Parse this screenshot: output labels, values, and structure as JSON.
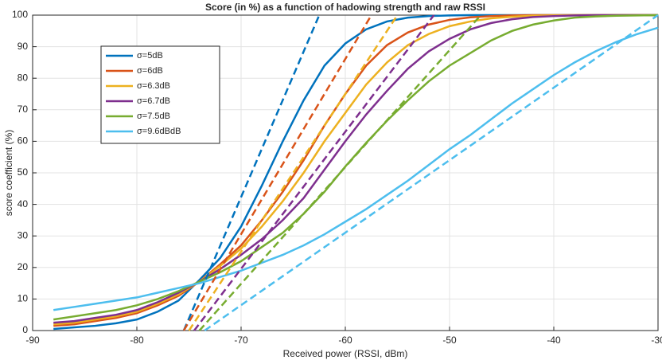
{
  "chart_data": {
    "type": "line",
    "title": "Score (in %) as a function of hadowing strength and raw RSSI",
    "x_label": "Received power (RSSI, dBm)",
    "y_label": "score coefficient (%)",
    "x": [
      -88,
      -86,
      -84,
      -82,
      -80,
      -78,
      -76,
      -74,
      -72,
      -70,
      -68,
      -66,
      -64,
      -62,
      -60,
      -58,
      -56,
      -54,
      -52,
      -50,
      -48,
      -46,
      -44,
      -42,
      -40,
      -38,
      -36,
      -34,
      -32,
      -30
    ],
    "series": [
      {
        "name": "σ=5dB",
        "color": "#0072bd",
        "values": [
          0.5,
          1,
          1.5,
          2.3,
          3.5,
          6,
          9.5,
          16,
          23,
          33,
          46,
          60,
          73,
          84,
          91,
          95.5,
          98,
          99.2,
          99.7,
          99.9,
          100,
          100,
          100,
          100,
          100,
          100,
          100,
          100,
          100,
          100
        ]
      },
      {
        "name": "σ=6dB",
        "color": "#d95319",
        "values": [
          1.5,
          2,
          3,
          4,
          5.5,
          8,
          11,
          15.5,
          21,
          27,
          35,
          44,
          54,
          65,
          75,
          84,
          90.5,
          94.5,
          97,
          98.5,
          99.3,
          99.7,
          99.9,
          100,
          100,
          100,
          100,
          100,
          100,
          100
        ]
      },
      {
        "name": "σ=6.3dB",
        "color": "#edb120",
        "values": [
          2,
          2.5,
          3.5,
          4.5,
          6,
          8.5,
          11.5,
          15.5,
          20.5,
          26,
          33,
          41,
          50,
          60,
          69,
          78,
          85,
          90.5,
          94,
          96.5,
          98,
          99,
          99.5,
          99.8,
          99.9,
          100,
          100,
          100,
          100,
          100
        ]
      },
      {
        "name": "σ=6.7dB",
        "color": "#7e2f8e",
        "values": [
          2.5,
          3,
          4,
          5,
          6.5,
          9,
          12,
          15.5,
          19.5,
          24,
          29,
          35,
          42,
          51,
          60,
          68.5,
          76,
          83,
          88.5,
          92.5,
          95.5,
          97.5,
          98.7,
          99.4,
          99.7,
          99.9,
          100,
          100,
          100,
          100
        ]
      },
      {
        "name": "σ=7.5dB",
        "color": "#77ac30",
        "values": [
          3.5,
          4.5,
          5.5,
          6.5,
          8,
          10,
          12.5,
          15.5,
          18.5,
          22,
          26.5,
          31,
          37,
          44,
          52,
          59.5,
          66.5,
          73,
          79,
          84,
          88,
          92,
          95,
          97,
          98.3,
          99.2,
          99.6,
          99.8,
          99.9,
          100
        ]
      },
      {
        "name": "σ=9.6dBdB",
        "color": "#4dbeee",
        "values": [
          6.5,
          7.5,
          8.5,
          9.5,
          10.5,
          12,
          13.5,
          15,
          17,
          19,
          21.5,
          24,
          27,
          30.5,
          34.5,
          38.5,
          43,
          47.5,
          52.5,
          57.5,
          62,
          67,
          72,
          76.5,
          81,
          85,
          88.5,
          91.5,
          94,
          96
        ]
      },
      {
        "color": "#0072bd",
        "dashed": true,
        "x": [
          -75.5,
          -62.5
        ],
        "values": [
          0,
          100
        ]
      },
      {
        "color": "#d95319",
        "dashed": true,
        "x": [
          -75.5,
          -57.5
        ],
        "values": [
          0,
          100
        ]
      },
      {
        "color": "#edb120",
        "dashed": true,
        "x": [
          -75,
          -55
        ],
        "values": [
          0,
          100
        ]
      },
      {
        "color": "#7e2f8e",
        "dashed": true,
        "x": [
          -74.5,
          -51.5
        ],
        "values": [
          0,
          100
        ]
      },
      {
        "color": "#77ac30",
        "dashed": true,
        "x": [
          -74,
          -47
        ],
        "values": [
          0,
          100
        ]
      },
      {
        "color": "#4dbeee",
        "dashed": true,
        "x": [
          -73.5,
          -30
        ],
        "values": [
          0,
          100
        ]
      }
    ],
    "xlim": [
      -90,
      -30
    ],
    "xticks": [
      -90,
      -80,
      -70,
      -60,
      -50,
      -40,
      -30
    ],
    "ylim": [
      0,
      100
    ],
    "yticks": [
      0,
      10,
      20,
      30,
      40,
      50,
      60,
      70,
      80,
      90,
      100
    ],
    "grid": true,
    "legend": "upper-left"
  }
}
